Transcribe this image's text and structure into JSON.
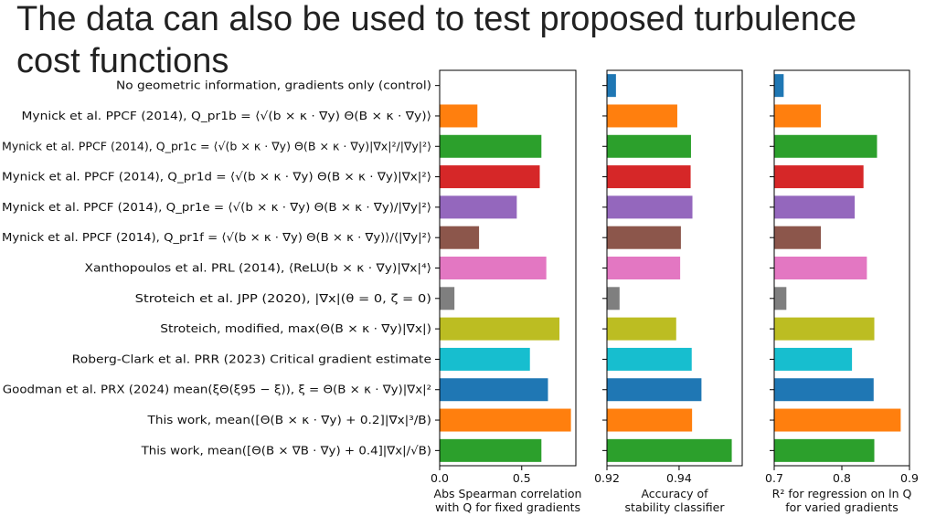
{
  "title": {
    "line1": "The data can also be used to test proposed turbulence",
    "line2": "cost functions"
  },
  "colors": [
    "#1f77b4",
    "#ff7f0e",
    "#2ca02c",
    "#d62728",
    "#9467bd",
    "#8c564b",
    "#e377c2",
    "#7f7f7f",
    "#bcbd22",
    "#17becf",
    "#1f77b4",
    "#ff7f0e",
    "#2ca02c"
  ],
  "chart_data": {
    "type": "bar",
    "orientation": "horizontal",
    "categories": [
      "No geometric information, gradients only (control)",
      "Mynick et al. PPCF (2014), Q_pr1b = ⟨√(b × κ · ∇y) Θ(B × κ · ∇y)⟩",
      "Mynick et al. PPCF (2014), Q_pr1c = ⟨√(b × κ · ∇y) Θ(B × κ · ∇y)|∇x|²/|∇y|²⟩",
      "Mynick et al. PPCF (2014), Q_pr1d = ⟨√(b × κ · ∇y) Θ(B × κ · ∇y)|∇x|²⟩",
      "Mynick et al. PPCF (2014), Q_pr1e = ⟨√(b × κ · ∇y) Θ(B × κ · ∇y)/|∇y|²⟩",
      "Mynick et al. PPCF (2014), Q_pr1f = ⟨√(b × κ · ∇y) Θ(B × κ · ∇y)⟩/⟨|∇y|²⟩",
      "Xanthopoulos et al. PRL (2014), ⟨ReLU(b × κ · ∇y)|∇x|⁴⟩",
      "Stroteich et al. JPP (2020), |∇x|(θ = 0, ζ = 0)",
      "Stroteich, modified, max(Θ(B × κ · ∇y)|∇x|)",
      "Roberg-Clark et al. PRR (2023) Critical gradient estimate",
      "Goodman et al. PRX (2024) mean(ξΘ(ξ95 − ξ)),  ξ = Θ(B × κ · ∇y)|∇x|²",
      "This work, mean([Θ(B × κ · ∇y) + 0.2]|∇x|³/B)",
      "This work, mean([Θ(B × ∇B · ∇y) + 0.4]|∇x|/√B)"
    ],
    "panels": [
      {
        "xlabel_line1": "Abs Spearman correlation",
        "xlabel_line2": "with Q for fixed gradients",
        "xlim": [
          0.0,
          0.83
        ],
        "ticks": [
          0.0,
          0.5
        ],
        "tick_labels": [
          "0.0",
          "0.5"
        ],
        "values": [
          0.0,
          0.23,
          0.62,
          0.61,
          0.47,
          0.24,
          0.65,
          0.09,
          0.73,
          0.55,
          0.66,
          0.8,
          0.62
        ]
      },
      {
        "xlabel_line1": "Accuracy of",
        "xlabel_line2": "stability classifier",
        "xlim": [
          0.92,
          0.9575
        ],
        "ticks": [
          0.92,
          0.94
        ],
        "tick_labels": [
          "0.92",
          "0.94"
        ],
        "values": [
          0.9225,
          0.9395,
          0.9433,
          0.9432,
          0.9437,
          0.9405,
          0.9403,
          0.9235,
          0.9392,
          0.9435,
          0.9462,
          0.9436,
          0.9546
        ]
      },
      {
        "xlabel_line1": "R² for regression on ln Q",
        "xlabel_line2": "for varied gradients",
        "xlim": [
          0.7,
          0.9
        ],
        "ticks": [
          0.7,
          0.8,
          0.9
        ],
        "tick_labels": [
          "0.7",
          "0.8",
          "0.9"
        ],
        "values": [
          0.714,
          0.769,
          0.852,
          0.832,
          0.819,
          0.769,
          0.837,
          0.718,
          0.848,
          0.815,
          0.847,
          0.887,
          0.848
        ]
      }
    ]
  }
}
